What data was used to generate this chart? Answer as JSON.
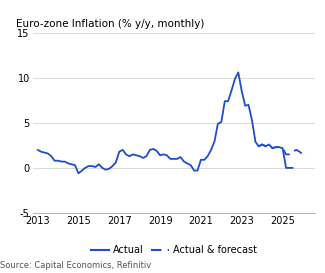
{
  "title": "Euro-zone Inflation (% y/y, monthly)",
  "source": "Source: Capital Economics, Refinitiv",
  "ylim": [
    -5,
    15
  ],
  "yticks": [
    -5,
    0,
    5,
    10,
    15
  ],
  "xlim_start": 2012.75,
  "xlim_end": 2026.6,
  "xticks": [
    2013,
    2015,
    2017,
    2019,
    2021,
    2023,
    2025
  ],
  "line_color": "#1f4ecc",
  "actual_x": [
    2013.0,
    2013.17,
    2013.33,
    2013.5,
    2013.67,
    2013.83,
    2014.0,
    2014.17,
    2014.33,
    2014.5,
    2014.67,
    2014.83,
    2015.0,
    2015.17,
    2015.33,
    2015.5,
    2015.67,
    2015.83,
    2016.0,
    2016.17,
    2016.33,
    2016.5,
    2016.67,
    2016.83,
    2017.0,
    2017.17,
    2017.33,
    2017.5,
    2017.67,
    2017.83,
    2018.0,
    2018.17,
    2018.33,
    2018.5,
    2018.67,
    2018.83,
    2019.0,
    2019.17,
    2019.33,
    2019.5,
    2019.67,
    2019.83,
    2020.0,
    2020.17,
    2020.33,
    2020.5,
    2020.67,
    2020.83,
    2021.0,
    2021.17,
    2021.33,
    2021.5,
    2021.67,
    2021.83,
    2022.0,
    2022.17,
    2022.33,
    2022.5,
    2022.67,
    2022.83,
    2023.0,
    2023.17,
    2023.33,
    2023.5,
    2023.67,
    2023.83,
    2024.0,
    2024.17,
    2024.33,
    2024.5,
    2024.67,
    2024.83,
    2025.0,
    2025.17,
    2025.33,
    2025.5
  ],
  "actual_y": [
    2.0,
    1.8,
    1.7,
    1.6,
    1.3,
    0.8,
    0.8,
    0.7,
    0.7,
    0.5,
    0.4,
    0.3,
    -0.6,
    -0.3,
    0.0,
    0.2,
    0.2,
    0.1,
    0.4,
    0.0,
    -0.2,
    -0.1,
    0.2,
    0.6,
    1.8,
    2.0,
    1.5,
    1.3,
    1.5,
    1.4,
    1.3,
    1.1,
    1.3,
    2.0,
    2.1,
    1.9,
    1.4,
    1.5,
    1.4,
    1.0,
    1.0,
    1.0,
    1.2,
    0.7,
    0.5,
    0.3,
    -0.3,
    -0.3,
    0.9,
    0.9,
    1.3,
    2.0,
    3.0,
    4.9,
    5.1,
    7.4,
    7.4,
    8.6,
    9.9,
    10.6,
    8.5,
    6.9,
    7.0,
    5.3,
    2.9,
    2.4,
    2.6,
    2.4,
    2.6,
    2.2,
    2.3,
    2.3,
    2.2,
    0.0,
    0.0,
    0.0
  ],
  "forecast_x": [
    2023.83,
    2024.0,
    2024.17,
    2024.33,
    2024.5,
    2024.67,
    2024.83,
    2025.0,
    2025.17,
    2025.33,
    2025.5,
    2025.67,
    2025.83,
    2026.0,
    2026.17
  ],
  "forecast_y": [
    2.4,
    2.6,
    2.4,
    2.6,
    2.2,
    2.3,
    2.3,
    2.2,
    1.5,
    1.5,
    1.8,
    2.0,
    1.8,
    1.5,
    1.3
  ]
}
